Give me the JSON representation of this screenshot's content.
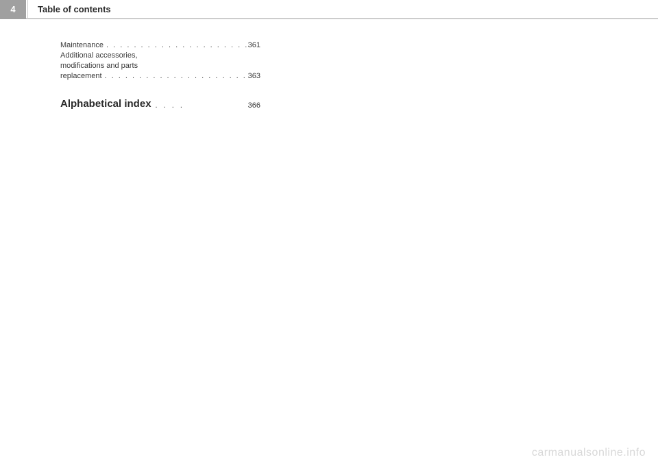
{
  "header": {
    "pageNumber": "4",
    "title": "Table of contents"
  },
  "toc": {
    "entries": [
      {
        "label": "Maintenance",
        "page": "361"
      }
    ],
    "multilineEntry": {
      "line1": "Additional accessories,",
      "line2": "modifications and parts",
      "lastLabel": "replacement",
      "page": "363"
    }
  },
  "index": {
    "title": "Alphabetical index",
    "page": "366"
  },
  "watermark": "carmanualsonline.info",
  "dots": ". . . . . . . . . . . . . . . . . . . . . . . . . .",
  "indexDots": ". . . ."
}
